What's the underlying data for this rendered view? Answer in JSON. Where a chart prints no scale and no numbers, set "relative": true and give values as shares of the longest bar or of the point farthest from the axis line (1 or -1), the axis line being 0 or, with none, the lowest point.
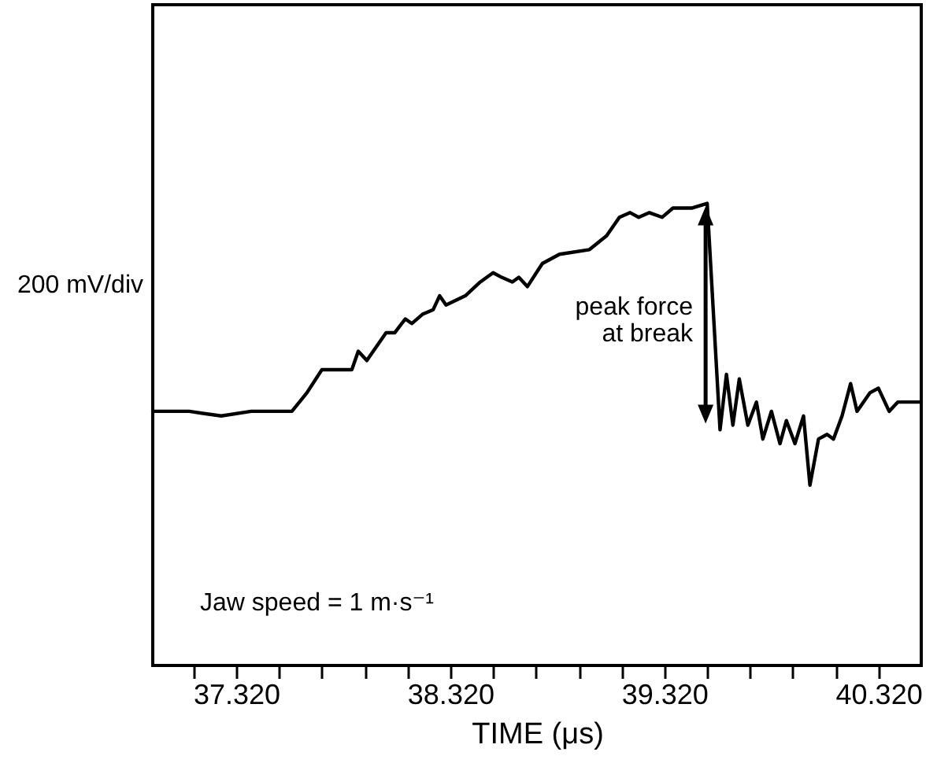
{
  "chart_data": {
    "type": "line",
    "relative": true,
    "xlabel": "TIME (μs)",
    "ylabel": "200 mV/div",
    "annotations": [
      "peak force\nat break",
      "Jaw speed = 1 m·s⁻¹"
    ],
    "xlim": [
      36.93,
      40.52
    ],
    "xticks": [
      {
        "value": 37.12,
        "label": null
      },
      {
        "value": 37.32,
        "label": "37.320"
      },
      {
        "value": 37.52,
        "label": null
      },
      {
        "value": 37.72,
        "label": null
      },
      {
        "value": 37.92,
        "label": null
      },
      {
        "value": 38.12,
        "label": null
      },
      {
        "value": 38.32,
        "label": "38.320"
      },
      {
        "value": 38.52,
        "label": null
      },
      {
        "value": 38.72,
        "label": null
      },
      {
        "value": 38.92,
        "label": null
      },
      {
        "value": 39.12,
        "label": null
      },
      {
        "value": 39.32,
        "label": "39.320"
      },
      {
        "value": 39.52,
        "label": null
      },
      {
        "value": 39.72,
        "label": null
      },
      {
        "value": 39.92,
        "label": null
      },
      {
        "value": 40.12,
        "label": null
      },
      {
        "value": 40.32,
        "label": "40.320"
      }
    ],
    "x": [
      36.93,
      37.1,
      37.25,
      37.39,
      37.58,
      37.65,
      37.72,
      37.83,
      37.86,
      37.89,
      37.93,
      38.02,
      38.06,
      38.11,
      38.14,
      38.19,
      38.24,
      38.27,
      38.3,
      38.39,
      38.46,
      38.52,
      38.56,
      38.61,
      38.64,
      38.68,
      38.75,
      38.83,
      38.97,
      39.05,
      39.11,
      39.16,
      39.2,
      39.25,
      39.31,
      39.36,
      39.42,
      39.45,
      39.52,
      39.58,
      39.61,
      39.64,
      39.67,
      39.71,
      39.75,
      39.78,
      39.82,
      39.86,
      39.89,
      39.93,
      39.97,
      40.0,
      40.04,
      40.08,
      40.11,
      40.15,
      40.19,
      40.22,
      40.28,
      40.32,
      40.37,
      40.41,
      40.45,
      40.52
    ],
    "series": [
      {
        "color": "#000000",
        "values": [
          0.55,
          0.55,
          0.54,
          0.55,
          0.55,
          0.59,
          0.64,
          0.64,
          0.64,
          0.68,
          0.66,
          0.72,
          0.72,
          0.75,
          0.74,
          0.76,
          0.77,
          0.8,
          0.78,
          0.8,
          0.83,
          0.85,
          0.84,
          0.83,
          0.84,
          0.82,
          0.87,
          0.89,
          0.9,
          0.93,
          0.97,
          0.98,
          0.97,
          0.98,
          0.97,
          0.99,
          0.99,
          0.99,
          1.0,
          0.51,
          0.63,
          0.52,
          0.62,
          0.52,
          0.57,
          0.49,
          0.55,
          0.48,
          0.53,
          0.48,
          0.54,
          0.39,
          0.49,
          0.5,
          0.49,
          0.54,
          0.61,
          0.55,
          0.59,
          0.6,
          0.55,
          0.57,
          0.57,
          0.57
        ]
      }
    ],
    "grid": false,
    "marker": "none",
    "line_style": "solid"
  }
}
